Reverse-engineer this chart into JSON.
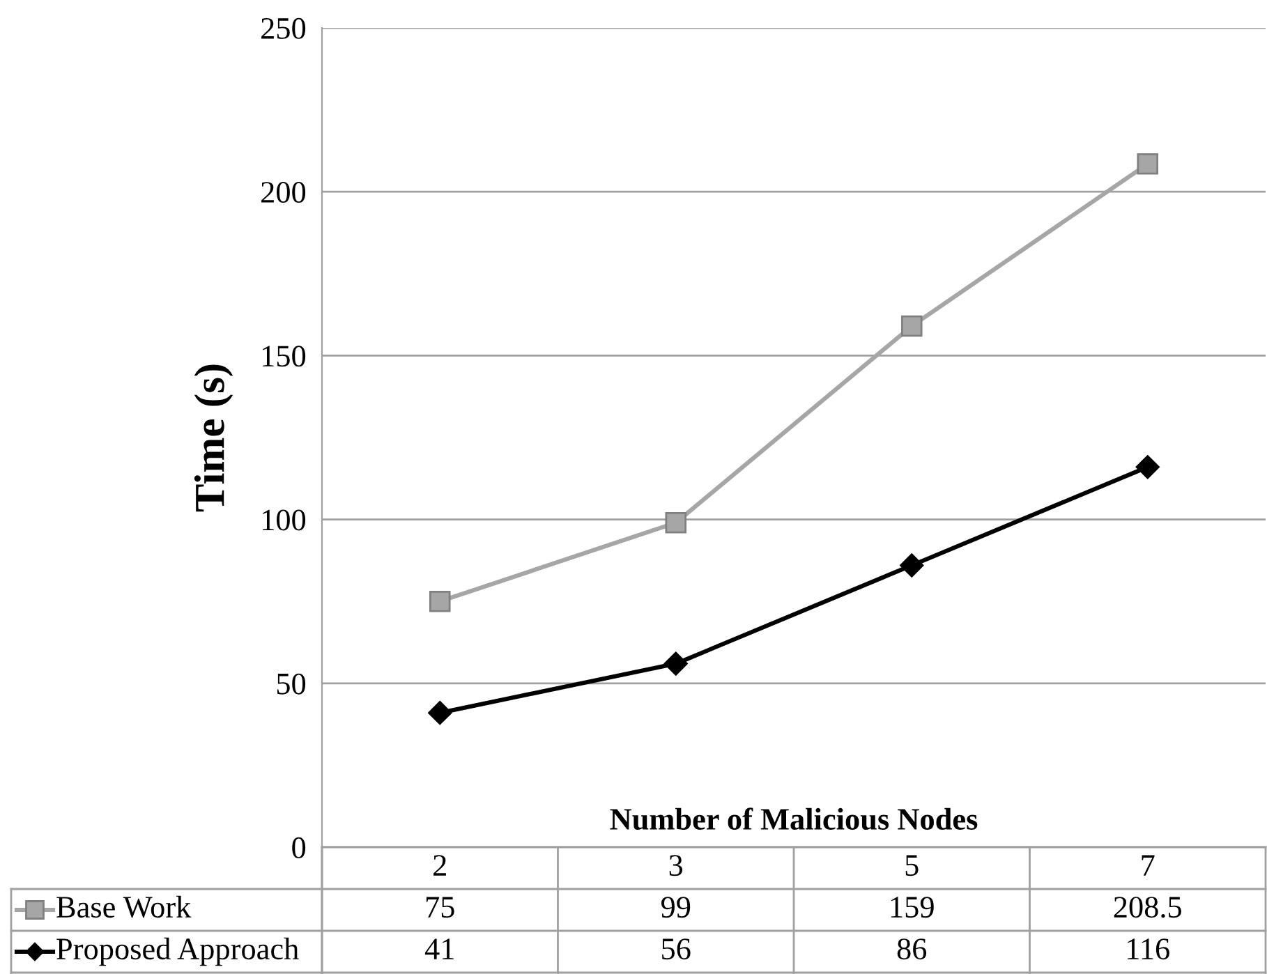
{
  "chart_data": {
    "type": "line",
    "xlabel": "Number of Malicious Nodes",
    "ylabel": "Time (s)",
    "categories": [
      "2",
      "3",
      "5",
      "7"
    ],
    "series": [
      {
        "name": "Base Work",
        "color": "#a6a6a6",
        "marker": "square",
        "values": [
          75,
          99,
          159,
          208.5
        ]
      },
      {
        "name": "Proposed Approach",
        "color": "#000000",
        "marker": "diamond",
        "values": [
          41,
          56,
          86,
          116
        ]
      }
    ],
    "ylim": [
      0,
      250
    ],
    "yticks": [
      0,
      50,
      100,
      150,
      200,
      250
    ],
    "grid": "y",
    "legend": "bottom",
    "data_labels": true,
    "line_style": "solid"
  }
}
